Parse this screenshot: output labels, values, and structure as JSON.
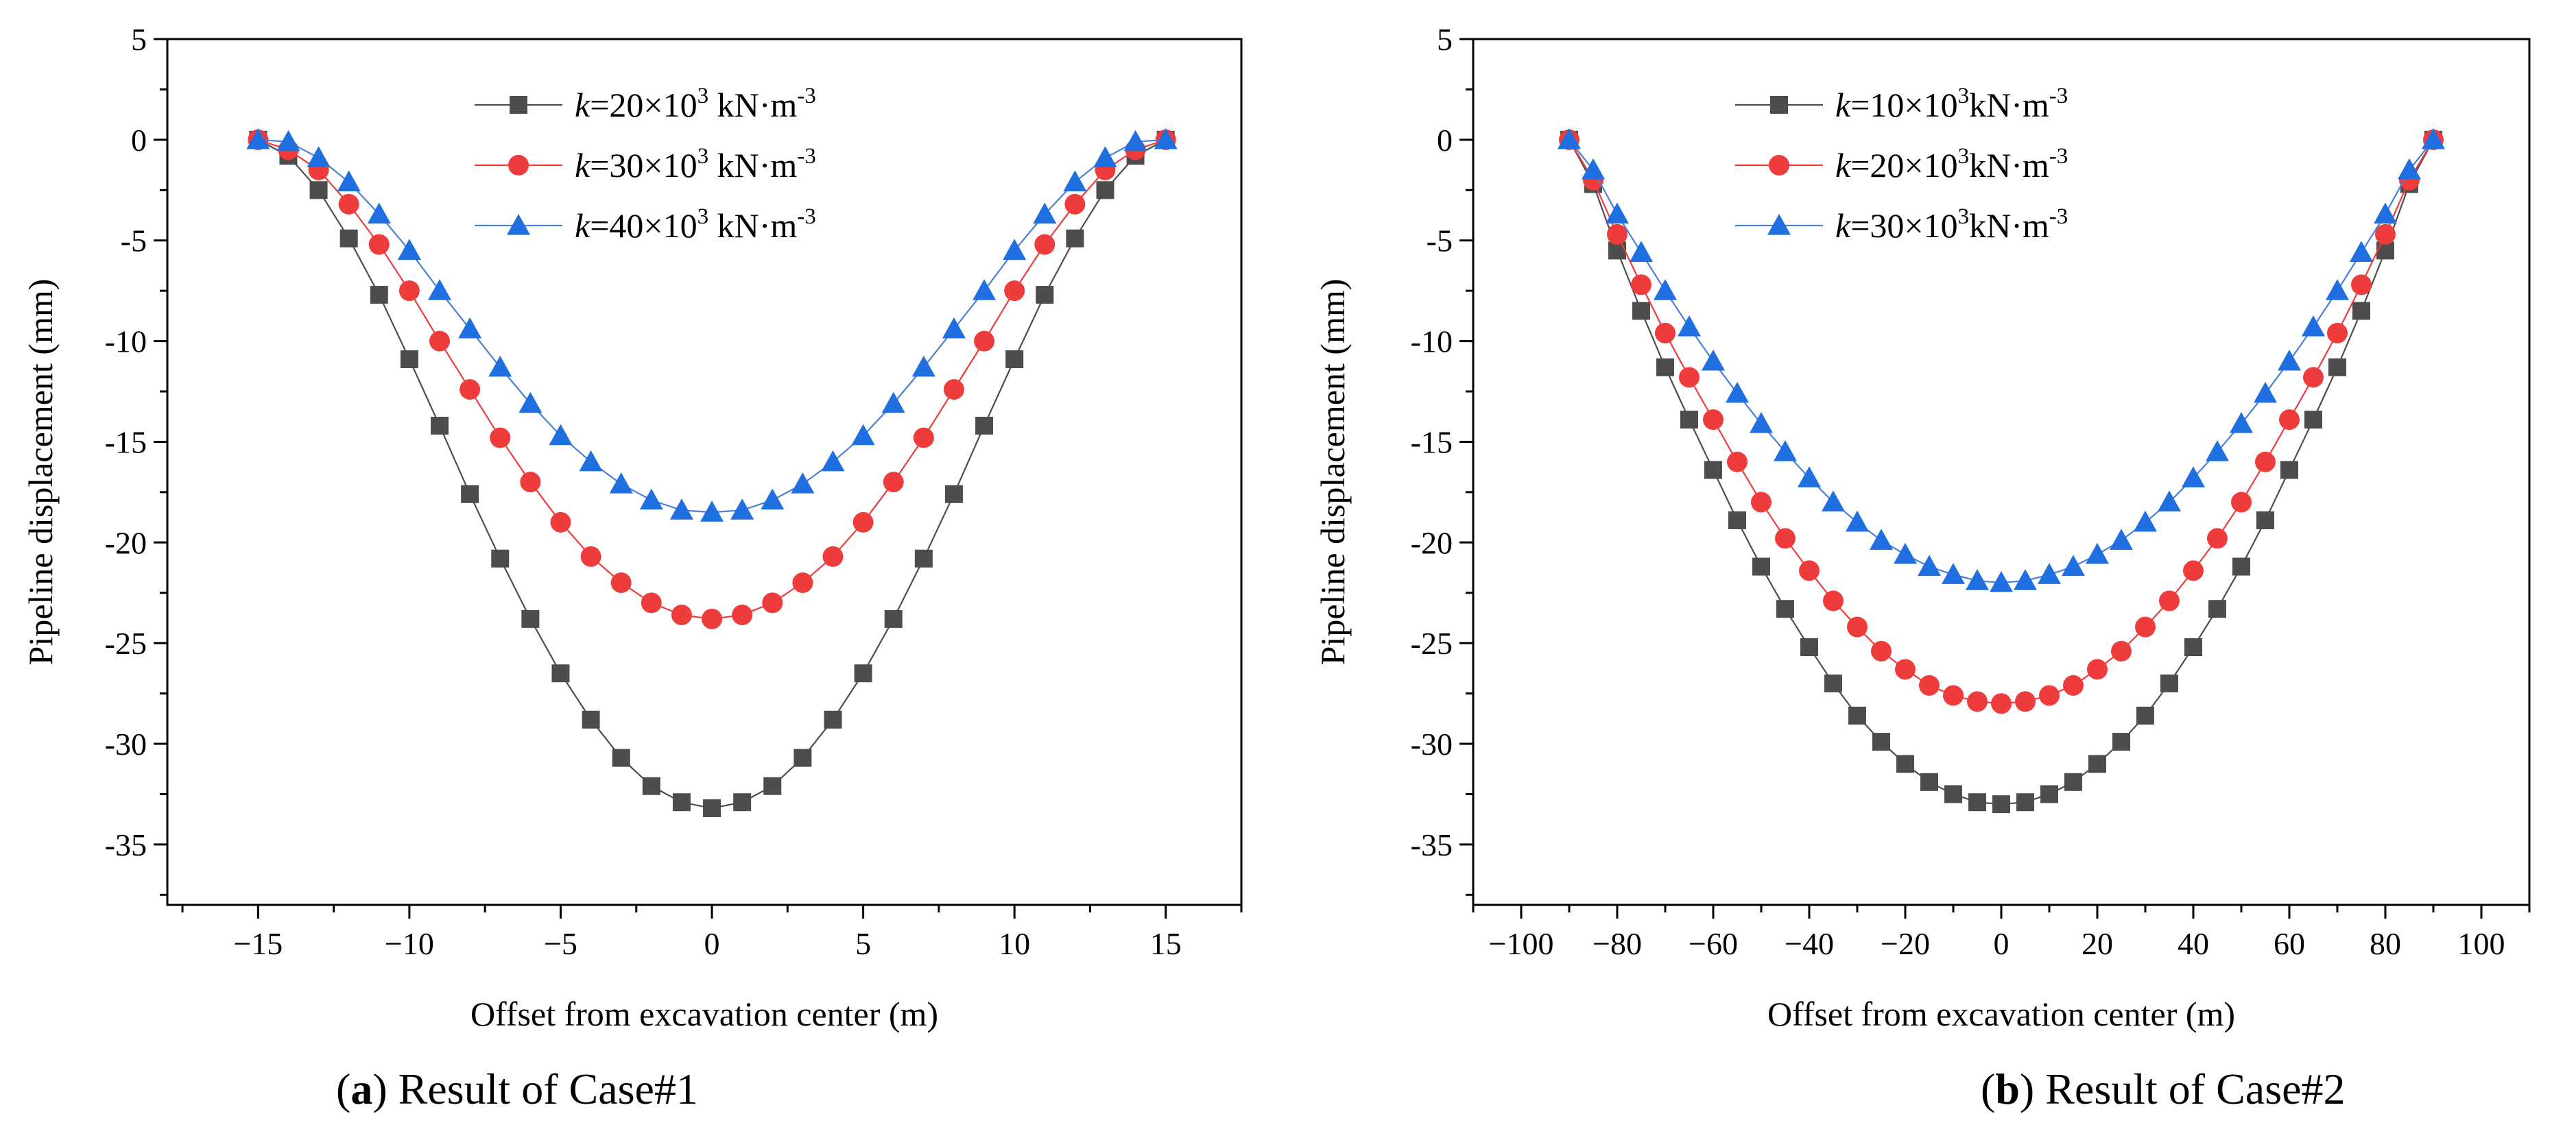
{
  "figure_captions": [
    {
      "letter": "a",
      "text": " Result of Case#1"
    },
    {
      "letter": "b",
      "text": " Result of Case#2"
    }
  ],
  "chart_data": [
    {
      "type": "line",
      "title": "",
      "xlabel": "Offset from excavation center (m)",
      "ylabel": "Pipeline displacement (mm)",
      "xlim": [
        -18,
        17.5
      ],
      "ylim": [
        -38,
        5
      ],
      "xticks": [
        -15,
        -10,
        -5,
        0,
        5,
        10,
        15
      ],
      "xtick_labels": [
        "−15",
        "−10",
        "−5",
        "0",
        "5",
        "10",
        "15"
      ],
      "yticks": [
        5,
        0,
        -5,
        -10,
        -15,
        -20,
        -25,
        -30,
        -35
      ],
      "ytick_labels": [
        "5",
        "0",
        "-5",
        "-10",
        "-15",
        "-20",
        "-25",
        "-30",
        "-35"
      ],
      "legend_position": "top-center",
      "x": [
        -15,
        -14,
        -13,
        -12,
        -11,
        -10,
        -9,
        -8,
        -7,
        -6,
        -5,
        -4,
        -3,
        -2,
        -1,
        0,
        1,
        2,
        3,
        4,
        5,
        6,
        7,
        8,
        9,
        10,
        11,
        12,
        13,
        14,
        15
      ],
      "series": [
        {
          "name": "k=20×10³ kN·m⁻³",
          "legend": {
            "k": "k",
            "pre": "=20×10",
            "exp1": "3",
            "mid": " kN·m",
            "exp2": "-3"
          },
          "marker": "square",
          "color": "#4d4d4d",
          "line_color": "#4d4d4d",
          "values": [
            0,
            -0.8,
            -2.5,
            -4.9,
            -7.7,
            -10.9,
            -14.2,
            -17.6,
            -20.8,
            -23.8,
            -26.5,
            -28.8,
            -30.7,
            -32.1,
            -32.9,
            -33.2,
            -32.9,
            -32.1,
            -30.7,
            -28.8,
            -26.5,
            -23.8,
            -20.8,
            -17.6,
            -14.2,
            -10.9,
            -7.7,
            -4.9,
            -2.5,
            -0.8,
            0
          ]
        },
        {
          "name": "k=30×10³ kN·m⁻³",
          "legend": {
            "k": "k",
            "pre": "=30×10",
            "exp1": "3",
            "mid": " kN·m",
            "exp2": "-3"
          },
          "marker": "circle",
          "color": "#ee3b3b",
          "line_color": "#ee3b3b",
          "values": [
            0,
            -0.5,
            -1.5,
            -3.2,
            -5.2,
            -7.5,
            -10.0,
            -12.4,
            -14.8,
            -17.0,
            -19.0,
            -20.7,
            -22.0,
            -23.0,
            -23.6,
            -23.8,
            -23.6,
            -23.0,
            -22.0,
            -20.7,
            -19.0,
            -17.0,
            -14.8,
            -12.4,
            -10.0,
            -7.5,
            -5.2,
            -3.2,
            -1.5,
            -0.5,
            0
          ]
        },
        {
          "name": "k=40×10³ kN·m⁻³",
          "legend": {
            "k": "k",
            "pre": "=40×10",
            "exp1": "3",
            "mid": " kN·m",
            "exp2": "-3"
          },
          "marker": "triangle",
          "color": "#1f6fe0",
          "line_color": "#4a7fd8",
          "values": [
            0,
            -0.1,
            -0.9,
            -2.1,
            -3.7,
            -5.5,
            -7.5,
            -9.4,
            -11.3,
            -13.1,
            -14.7,
            -16.0,
            -17.1,
            -17.9,
            -18.4,
            -18.5,
            -18.4,
            -17.9,
            -17.1,
            -16.0,
            -14.7,
            -13.1,
            -11.3,
            -9.4,
            -7.5,
            -5.5,
            -3.7,
            -2.1,
            -0.9,
            -0.1,
            0
          ]
        }
      ]
    },
    {
      "type": "line",
      "title": "",
      "xlabel": "Offset from excavation center (m)",
      "ylabel": "Pipeline displacement (mm)",
      "xlim": [
        -110,
        110
      ],
      "ylim": [
        -38,
        5
      ],
      "xticks": [
        -100,
        -80,
        -60,
        -40,
        -20,
        0,
        20,
        40,
        60,
        80,
        100
      ],
      "xtick_labels": [
        "−100",
        "−80",
        "−60",
        "−40",
        "−20",
        "0",
        "20",
        "40",
        "60",
        "80",
        "100"
      ],
      "yticks": [
        5,
        0,
        -5,
        -10,
        -15,
        -20,
        -25,
        -30,
        -35
      ],
      "ytick_labels": [
        "5",
        "0",
        "-5",
        "-10",
        "-15",
        "-20",
        "-25",
        "-30",
        "-35"
      ],
      "legend_position": "top-center",
      "x": [
        -90,
        -85,
        -80,
        -75,
        -70,
        -65,
        -60,
        -55,
        -50,
        -45,
        -40,
        -35,
        -30,
        -25,
        -20,
        -15,
        -10,
        -5,
        0,
        5,
        10,
        15,
        20,
        25,
        30,
        35,
        40,
        45,
        50,
        55,
        60,
        65,
        70,
        75,
        80,
        85,
        90
      ],
      "series": [
        {
          "name": "k=10×10³kN·m⁻³",
          "legend": {
            "k": "k",
            "pre": "=10×10",
            "exp1": "3",
            "mid": "kN·m",
            "exp2": "-3"
          },
          "marker": "square",
          "color": "#4d4d4d",
          "line_color": "#4d4d4d",
          "values": [
            0,
            -2.2,
            -5.5,
            -8.5,
            -11.3,
            -13.9,
            -16.4,
            -18.9,
            -21.2,
            -23.3,
            -25.2,
            -27.0,
            -28.6,
            -29.9,
            -31.0,
            -31.9,
            -32.5,
            -32.9,
            -33.0,
            -32.9,
            -32.5,
            -31.9,
            -31.0,
            -29.9,
            -28.6,
            -27.0,
            -25.2,
            -23.3,
            -21.2,
            -18.9,
            -16.4,
            -13.9,
            -11.3,
            -8.5,
            -5.5,
            -2.2,
            0
          ]
        },
        {
          "name": "k=20×10³kN·m⁻³",
          "legend": {
            "k": "k",
            "pre": "=20×10",
            "exp1": "3",
            "mid": "kN·m",
            "exp2": "-3"
          },
          "marker": "circle",
          "color": "#ee3b3b",
          "line_color": "#ee3b3b",
          "values": [
            0,
            -2.0,
            -4.7,
            -7.2,
            -9.6,
            -11.8,
            -13.9,
            -16.0,
            -18.0,
            -19.8,
            -21.4,
            -22.9,
            -24.2,
            -25.4,
            -26.3,
            -27.1,
            -27.6,
            -27.9,
            -28.0,
            -27.9,
            -27.6,
            -27.1,
            -26.3,
            -25.4,
            -24.2,
            -22.9,
            -21.4,
            -19.8,
            -18.0,
            -16.0,
            -13.9,
            -11.8,
            -9.6,
            -7.2,
            -4.7,
            -2.0,
            0
          ]
        },
        {
          "name": "k=30×10³kN·m⁻³",
          "legend": {
            "k": "k",
            "pre": "=30×10",
            "exp1": "3",
            "mid": "kN·m",
            "exp2": "-3"
          },
          "marker": "triangle",
          "color": "#1f6fe0",
          "line_color": "#4a7fd8",
          "values": [
            0,
            -1.5,
            -3.7,
            -5.6,
            -7.5,
            -9.3,
            -11.0,
            -12.6,
            -14.1,
            -15.5,
            -16.8,
            -18.0,
            -19.0,
            -19.9,
            -20.6,
            -21.2,
            -21.6,
            -21.9,
            -22.0,
            -21.9,
            -21.6,
            -21.2,
            -20.6,
            -19.9,
            -19.0,
            -18.0,
            -16.8,
            -15.5,
            -14.1,
            -12.6,
            -11.0,
            -9.3,
            -7.5,
            -5.6,
            -3.7,
            -1.5,
            0
          ]
        }
      ]
    }
  ]
}
